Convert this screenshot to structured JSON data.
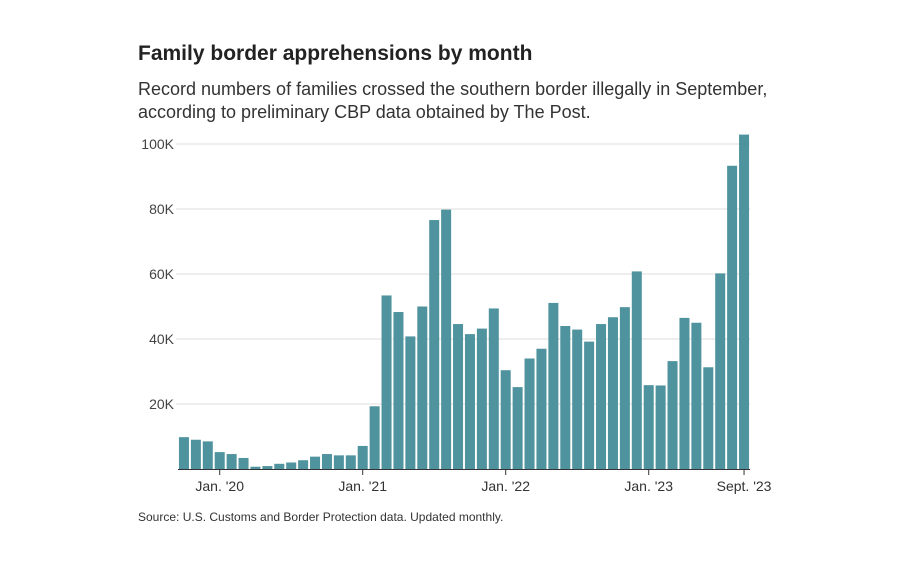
{
  "title": "Family border apprehensions by month",
  "subtitle": "Record numbers of families crossed the southern border illegally in September, according to preliminary CBP data obtained by The Post.",
  "source": "Source: U.S. Customs and Border Protection data. Updated monthly.",
  "colors": {
    "bar": "#4f939e",
    "grid": "#dddddd",
    "axis": "#333333"
  },
  "chart_data": {
    "type": "bar",
    "title": "Family border apprehensions by month",
    "xlabel": "",
    "ylabel": "",
    "ylim": [
      0,
      100000
    ],
    "grid": true,
    "y_ticks": [
      {
        "value": 20000,
        "label": "20K"
      },
      {
        "value": 40000,
        "label": "40K"
      },
      {
        "value": 60000,
        "label": "60K"
      },
      {
        "value": 80000,
        "label": "80K"
      },
      {
        "value": 100000,
        "label": "100K"
      }
    ],
    "x_ticks": [
      {
        "index": 3,
        "label": "Jan. '20"
      },
      {
        "index": 15,
        "label": "Jan. '21"
      },
      {
        "index": 27,
        "label": "Jan. '22"
      },
      {
        "index": 39,
        "label": "Jan. '23"
      },
      {
        "index": 47,
        "label": "Sept. '23"
      }
    ],
    "categories": [
      "Oct 2019",
      "Nov 2019",
      "Dec 2019",
      "Jan 2020",
      "Feb 2020",
      "Mar 2020",
      "Apr 2020",
      "May 2020",
      "Jun 2020",
      "Jul 2020",
      "Aug 2020",
      "Sep 2020",
      "Oct 2020",
      "Nov 2020",
      "Dec 2020",
      "Jan 2021",
      "Feb 2021",
      "Mar 2021",
      "Apr 2021",
      "May 2021",
      "Jun 2021",
      "Jul 2021",
      "Aug 2021",
      "Sep 2021",
      "Oct 2021",
      "Nov 2021",
      "Dec 2021",
      "Jan 2022",
      "Feb 2022",
      "Mar 2022",
      "Apr 2022",
      "May 2022",
      "Jun 2022",
      "Jul 2022",
      "Aug 2022",
      "Sep 2022",
      "Oct 2022",
      "Nov 2022",
      "Dec 2022",
      "Jan 2023",
      "Feb 2023",
      "Mar 2023",
      "Apr 2023",
      "May 2023",
      "Jun 2023",
      "Jul 2023",
      "Aug 2023",
      "Sep 2023"
    ],
    "values": [
      9800,
      9000,
      8500,
      5200,
      4600,
      3400,
      700,
      900,
      1600,
      2000,
      2700,
      3800,
      4600,
      4200,
      4200,
      7100,
      19300,
      53400,
      48300,
      40800,
      50000,
      76600,
      79800,
      44600,
      41500,
      43200,
      49400,
      30400,
      25200,
      34000,
      37000,
      51100,
      44000,
      42900,
      39200,
      44600,
      46700,
      49800,
      60800,
      25800,
      25700,
      33200,
      46500,
      45000,
      31300,
      60200,
      93300,
      102900
    ]
  }
}
